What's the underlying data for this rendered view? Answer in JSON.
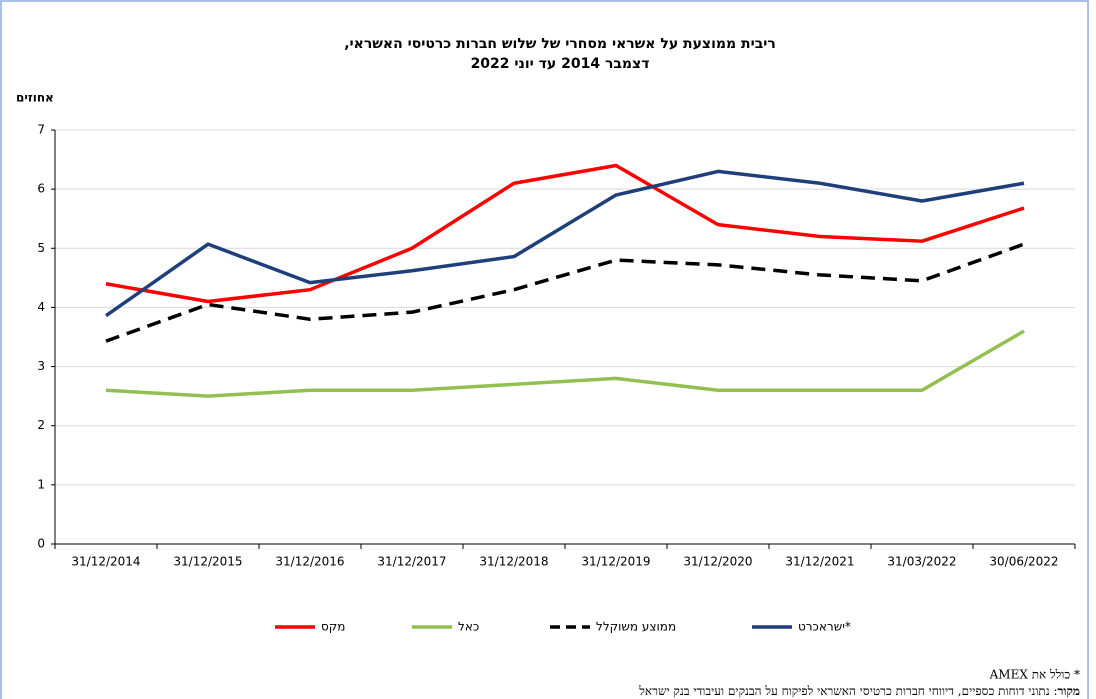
{
  "chart_data": {
    "type": "line",
    "title": [
      "ריבית ממוצעת על אשראי מסחרי של שלוש חברות כרטיסי האשראי,",
      "דצמבר 2014 עד יוני 2022"
    ],
    "y_label": "אחוזים",
    "categories": [
      "31/12/2014",
      "31/12/2015",
      "31/12/2016",
      "31/12/2017",
      "31/12/2018",
      "31/12/2019",
      "31/12/2020",
      "31/12/2021",
      "31/03/2022",
      "30/06/2022"
    ],
    "series": [
      {
        "name": "מקס",
        "color": "#ff0000",
        "values": [
          4.4,
          4.1,
          4.3,
          5.0,
          6.1,
          6.4,
          5.4,
          5.2,
          5.12,
          5.68
        ]
      },
      {
        "name": "כאל",
        "color": "#92c050",
        "values": [
          2.6,
          2.5,
          2.6,
          2.6,
          2.7,
          2.8,
          2.6,
          2.6,
          2.6,
          3.6
        ]
      },
      {
        "name": "ממוצע משוקלל",
        "color": "#000000",
        "dashed": true,
        "values": [
          3.43,
          4.05,
          3.8,
          3.92,
          4.3,
          4.8,
          4.72,
          4.55,
          4.45,
          5.07
        ]
      },
      {
        "name": "ישראכרט*",
        "color": "#1f3f7a",
        "values": [
          3.86,
          5.07,
          4.42,
          4.62,
          4.86,
          5.9,
          6.3,
          6.1,
          5.8,
          6.1
        ]
      }
    ],
    "ylim": [
      0,
      7
    ],
    "yticks": [
      0,
      1,
      2,
      3,
      4,
      5,
      6,
      7
    ],
    "grid": true,
    "legend": "bottom",
    "footnote": "* כולל את AMEX",
    "source_label": "מקור",
    "source_text": ": נתוני דוחות כספיים, דיווחי חברות כרטיסי האשראי לפיקוח על הבנקים ועיבודי בנק ישראל"
  }
}
